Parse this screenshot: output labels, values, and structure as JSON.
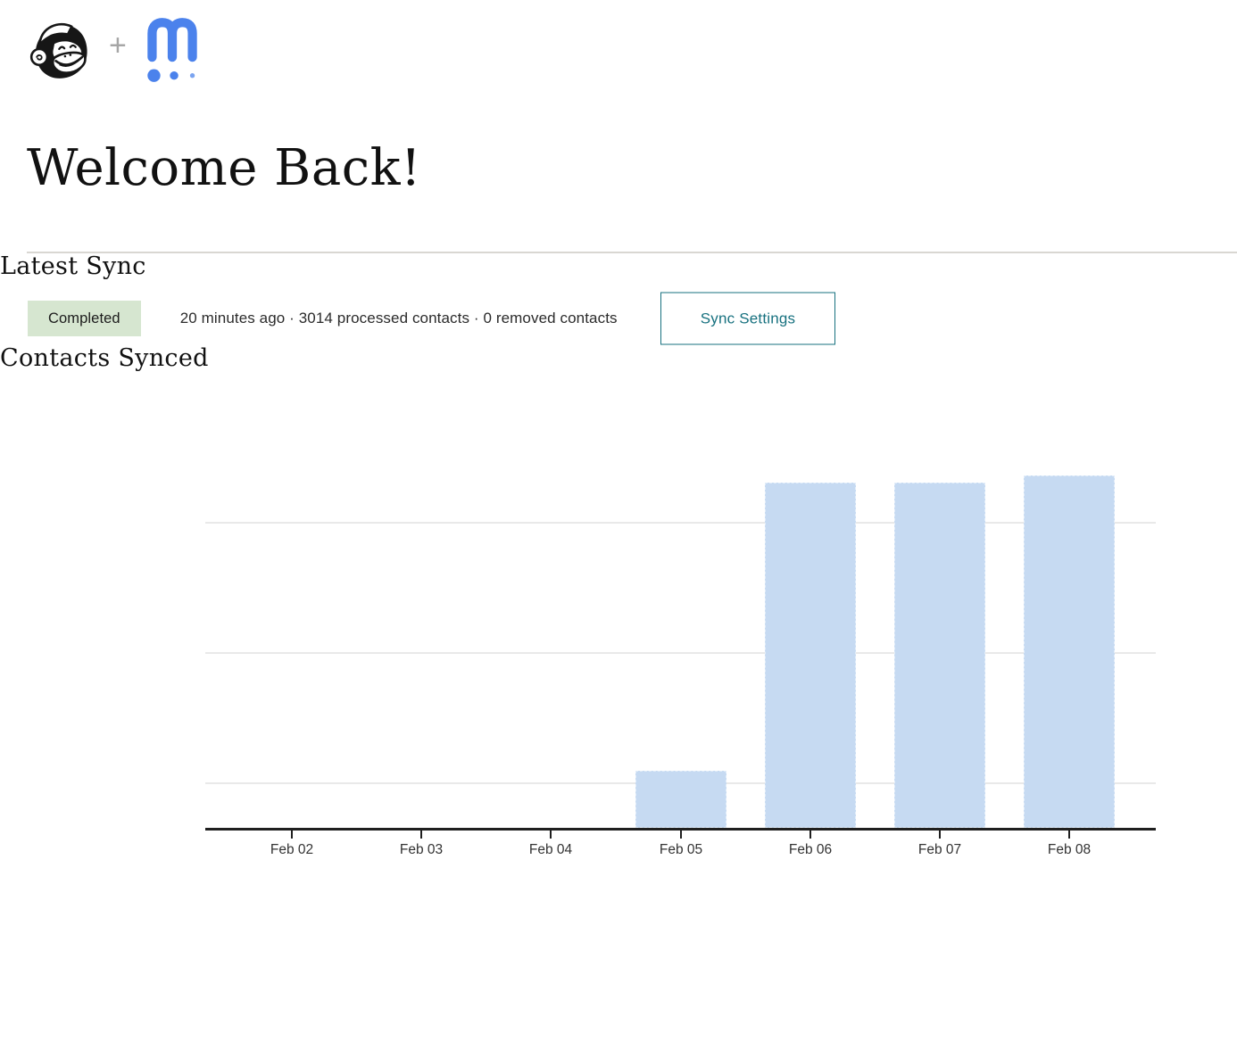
{
  "header": {
    "plus": "+",
    "icons": {
      "left": "mailchimp-freddie-logo",
      "separator": "plus-icon",
      "right": "m-dots-logo"
    }
  },
  "page": {
    "title": "Welcome Back!"
  },
  "latest_sync": {
    "heading": "Latest Sync",
    "status_badge": "Completed",
    "summary": "20 minutes ago · 3014 processed contacts · 0 removed contacts",
    "settings_button": "Sync Settings"
  },
  "chart_data": {
    "type": "bar",
    "title": "Contacts Synced",
    "categories": [
      "Feb 02",
      "Feb 03",
      "Feb 04",
      "Feb 05",
      "Feb 06",
      "Feb 07",
      "Feb 08"
    ],
    "values": [
      0,
      0,
      0,
      490,
      2950,
      2950,
      3014
    ],
    "xlabel": "",
    "ylabel": "",
    "ylim": [
      0,
      3090
    ],
    "grid": "horizontal",
    "legend": "none",
    "y_tick_labels_visible": false
  },
  "colors": {
    "bar_fill": "#c6daf2",
    "accent_teal": "#17717f",
    "badge_green": "#d6e6d0",
    "logo_blue": "#4b82ec",
    "axis": "#1f1f1f",
    "gridline": "#e9e9e9",
    "divider": "#d9d7d2"
  }
}
